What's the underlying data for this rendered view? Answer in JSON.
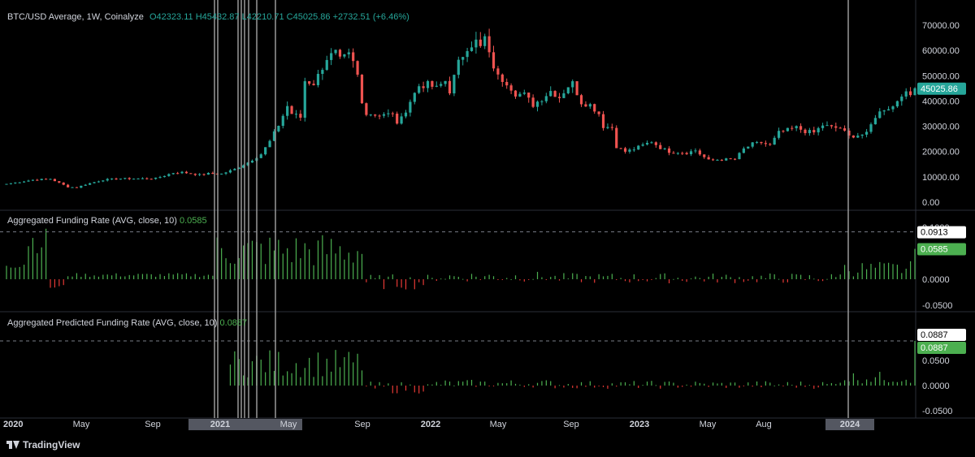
{
  "header": {
    "symbol": "BTC/USD Average, 1W, Coinalyze",
    "o_label": "O",
    "o": "42323.11",
    "h_label": "H",
    "h": "45432.87",
    "l_label": "L",
    "l": "42210.71",
    "c_label": "C",
    "c": "45025.86",
    "change": "+2732.51 (+6.46%)"
  },
  "panes": {
    "funding_title": "Aggregated Funding Rate (AVG, close, 10)",
    "funding_value": "0.0585",
    "predicted_title": "Aggregated Predicted Funding Rate (AVG, close, 10)",
    "predicted_value": "0.0887"
  },
  "branding": {
    "text": "TradingView"
  },
  "colors": {
    "up": "#26a69a",
    "down": "#ef5350",
    "green_bar": "#4caf50",
    "red_bar": "#e53935",
    "grid": "#1c1c1c",
    "text": "#d1d4dc"
  },
  "chart_data": [
    {
      "type": "candlestick",
      "title": "BTC/USD Average, 1W, Coinalyze",
      "y_ticks": [
        "70000.00",
        "60000.00",
        "50000.00",
        "40000.00",
        "30000.00",
        "20000.00",
        "10000.00",
        "0.00"
      ],
      "ylim": [
        0,
        70000
      ],
      "last_price_label": "45025.86",
      "x_ticks": [
        "2020",
        "May",
        "Sep",
        "2021",
        "May",
        "Sep",
        "2022",
        "May",
        "Sep",
        "2023",
        "May",
        "Aug",
        "2024"
      ],
      "weekly_close_anchors": [
        [
          0,
          7200
        ],
        [
          6,
          8800
        ],
        [
          10,
          9200
        ],
        [
          14,
          6000
        ],
        [
          16,
          5800
        ],
        [
          18,
          7000
        ],
        [
          22,
          8800
        ],
        [
          26,
          9300
        ],
        [
          30,
          9300
        ],
        [
          34,
          9400
        ],
        [
          38,
          11600
        ],
        [
          40,
          11800
        ],
        [
          44,
          10800
        ],
        [
          46,
          11300
        ],
        [
          49,
          11200
        ],
        [
          52,
          13000
        ],
        [
          55,
          15700
        ],
        [
          58,
          19000
        ],
        [
          60,
          24000
        ],
        [
          62,
          30500
        ],
        [
          64,
          38000
        ],
        [
          65,
          35000
        ],
        [
          67,
          33500
        ],
        [
          68,
          48000
        ],
        [
          70,
          47000
        ],
        [
          71,
          50000
        ],
        [
          73,
          57000
        ],
        [
          75,
          59000
        ],
        [
          76,
          56000
        ],
        [
          78,
          58000
        ],
        [
          79,
          55000
        ],
        [
          80,
          50000
        ],
        [
          81,
          39000
        ],
        [
          82,
          35500
        ],
        [
          84,
          34500
        ],
        [
          86,
          35000
        ],
        [
          88,
          34500
        ],
        [
          89,
          31500
        ],
        [
          90,
          33000
        ],
        [
          92,
          40000
        ],
        [
          94,
          46000
        ],
        [
          96,
          46500
        ],
        [
          98,
          45000
        ],
        [
          100,
          48000
        ],
        [
          101,
          44000
        ],
        [
          103,
          55000
        ],
        [
          105,
          61500
        ],
        [
          107,
          63500
        ],
        [
          108,
          61000
        ],
        [
          109,
          65000
        ],
        [
          110,
          58000
        ],
        [
          112,
          49500
        ],
        [
          114,
          47500
        ],
        [
          116,
          43000
        ],
        [
          118,
          42500
        ],
        [
          120,
          38500
        ],
        [
          122,
          41000
        ],
        [
          124,
          44000
        ],
        [
          126,
          41500
        ],
        [
          128,
          46000
        ],
        [
          129,
          47000
        ],
        [
          131,
          39500
        ],
        [
          133,
          38500
        ],
        [
          135,
          35000
        ],
        [
          136,
          30000
        ],
        [
          138,
          29500
        ],
        [
          139,
          22000
        ],
        [
          141,
          20000
        ],
        [
          143,
          21000
        ],
        [
          145,
          22500
        ],
        [
          147,
          24000
        ],
        [
          149,
          21500
        ],
        [
          151,
          20000
        ],
        [
          153,
          19800
        ],
        [
          155,
          19500
        ],
        [
          157,
          20500
        ],
        [
          158,
          19000
        ],
        [
          160,
          16500
        ],
        [
          162,
          16800
        ],
        [
          164,
          16900
        ],
        [
          166,
          17000
        ],
        [
          168,
          21000
        ],
        [
          170,
          23000
        ],
        [
          172,
          23500
        ],
        [
          174,
          22500
        ],
        [
          176,
          27500
        ],
        [
          178,
          28500
        ],
        [
          180,
          29500
        ],
        [
          182,
          28000
        ],
        [
          184,
          27500
        ],
        [
          186,
          30500
        ],
        [
          188,
          29500
        ],
        [
          190,
          29300
        ],
        [
          192,
          26000
        ],
        [
          194,
          26500
        ],
        [
          196,
          27000
        ],
        [
          198,
          34000
        ],
        [
          200,
          37000
        ],
        [
          202,
          37800
        ],
        [
          204,
          43000
        ],
        [
          206,
          42300
        ],
        [
          207,
          45025.86
        ]
      ],
      "last_bar": {
        "open": 42323.11,
        "high": 45432.87,
        "low": 42210.71,
        "close": 45025.86
      }
    },
    {
      "type": "bar",
      "title": "Aggregated Funding Rate (AVG, close, 10)",
      "y_ticks": [
        "0.1000",
        "0.0000",
        "-0.0500"
      ],
      "ylim": [
        -0.06,
        0.11
      ],
      "hline": 0.0913,
      "price_labels": [
        "0.0913",
        "0.0585"
      ],
      "last_value": 0.0585
    },
    {
      "type": "bar",
      "title": "Aggregated Predicted Funding Rate (AVG, close, 10)",
      "y_ticks": [
        "0.0500",
        "0.0000",
        "-0.0500"
      ],
      "ylim": [
        -0.055,
        0.105
      ],
      "hline": 0.0887,
      "price_labels": [
        "0.0887",
        "0.0887"
      ],
      "last_value": 0.0887
    }
  ]
}
